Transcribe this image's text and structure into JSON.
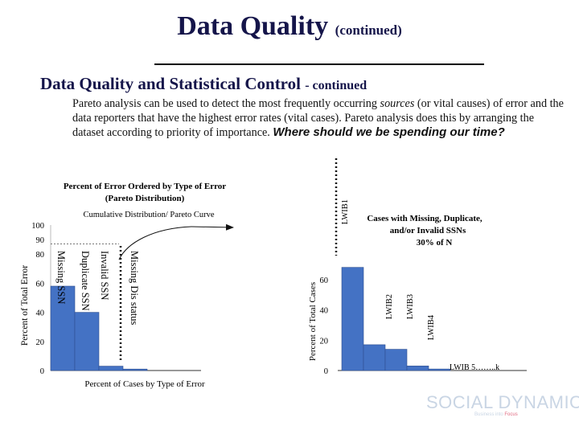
{
  "slide": {
    "title": "Data Quality",
    "title_suffix": "(continued)",
    "subtitle": "Data Quality and Statistical Control",
    "subtitle_suffix": "- continued",
    "para_1": "Pareto analysis can be used to detect the most frequently occurring",
    "para_em": "sources",
    "para_2": "(or vital causes) of error and the data reporters that have the highest error rates (vital cases). Pareto analysis does this by arranging the dataset according to priority of importance.",
    "callout": "Where should we be spending our time?",
    "logo": "SOCIAL DYNAMICS",
    "logo_tag_1": "Business into",
    "logo_tag_2": "Focus"
  },
  "colors": {
    "bar": "#4472c4",
    "bar_edge": "#2f4f8f",
    "title": "#15154a",
    "axis": "#333333"
  },
  "chart_data": [
    {
      "type": "bar",
      "title": "Percent of Error Ordered by Type of Error (Pareto Distribution)",
      "xlabel": "Percent of Cases by Type of Error",
      "ylabel": "Percent of Total Error",
      "ylim": [
        0,
        100
      ],
      "yticks": [
        0,
        20,
        40,
        60,
        80,
        90,
        100
      ],
      "categories": [
        "Missing SSN",
        "Duplicate SSN",
        "Invalid SSN",
        "Missing Dis status"
      ],
      "values": [
        58,
        40,
        3,
        1
      ],
      "cumulative": [
        58,
        98,
        101,
        102
      ],
      "annotation": "Cumulative Distribution/ Pareto Curve"
    },
    {
      "type": "bar",
      "title": "Cases with Missing, Duplicate, and/or Invalid SSNs 30% of N",
      "ylabel": "Percent of Total Cases",
      "ylim": [
        0,
        80
      ],
      "yticks": [
        0,
        20,
        40,
        60
      ],
      "categories": [
        "LWIB1",
        "LWIB2",
        "LWIB3",
        "LWIB4",
        "LWIB 5……..k"
      ],
      "values": [
        68,
        17,
        14,
        3,
        1
      ]
    }
  ]
}
